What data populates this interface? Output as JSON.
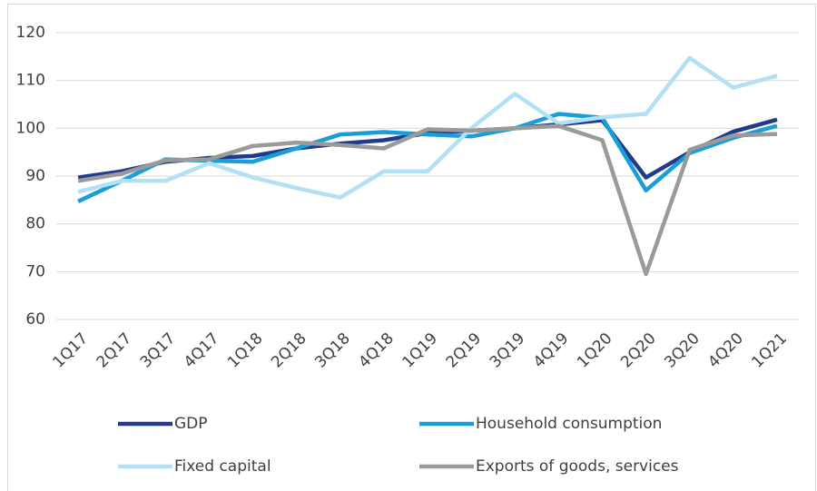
{
  "chart_data": {
    "type": "line",
    "categories": [
      "1Q17",
      "2Q17",
      "3Q17",
      "4Q17",
      "1Q18",
      "2Q18",
      "3Q18",
      "4Q18",
      "1Q19",
      "2Q19",
      "3Q19",
      "4Q19",
      "1Q20",
      "2Q20",
      "3Q20",
      "4Q20",
      "1Q21"
    ],
    "series": [
      {
        "name": "GDP",
        "color": "#203a8c",
        "values": [
          89.7,
          91,
          93,
          93.8,
          94.2,
          95.8,
          96.8,
          97.5,
          99,
          99.5,
          100,
          100.8,
          101.7,
          89.7,
          95,
          99.3,
          101.8
        ]
      },
      {
        "name": "Household consumption",
        "color": "#1a9ed8",
        "values": [
          84.7,
          89,
          93.5,
          93.2,
          93,
          95.8,
          98.7,
          99.2,
          98.7,
          98.3,
          100,
          103,
          102.2,
          87,
          94.8,
          98,
          100.5
        ]
      },
      {
        "name": "Fixed capital",
        "color": "#b3e0f5",
        "values": [
          86.7,
          89,
          89,
          92.7,
          89.7,
          87.5,
          85.5,
          91,
          91,
          100,
          107.2,
          101,
          102.3,
          103,
          114.7,
          108.5,
          111
        ]
      },
      {
        "name": "Exports of goods, services",
        "color": "#9a9a9a",
        "values": [
          89,
          90.5,
          93.3,
          93.5,
          96.3,
          97,
          96.5,
          95.8,
          99.8,
          99.5,
          100,
          100.5,
          97.5,
          69.5,
          95.5,
          98.5,
          98.8
        ]
      }
    ],
    "ylim": [
      60,
      120
    ],
    "yticks": [
      60,
      70,
      80,
      90,
      100,
      110,
      120
    ],
    "grid": true,
    "legend": "bottom"
  }
}
